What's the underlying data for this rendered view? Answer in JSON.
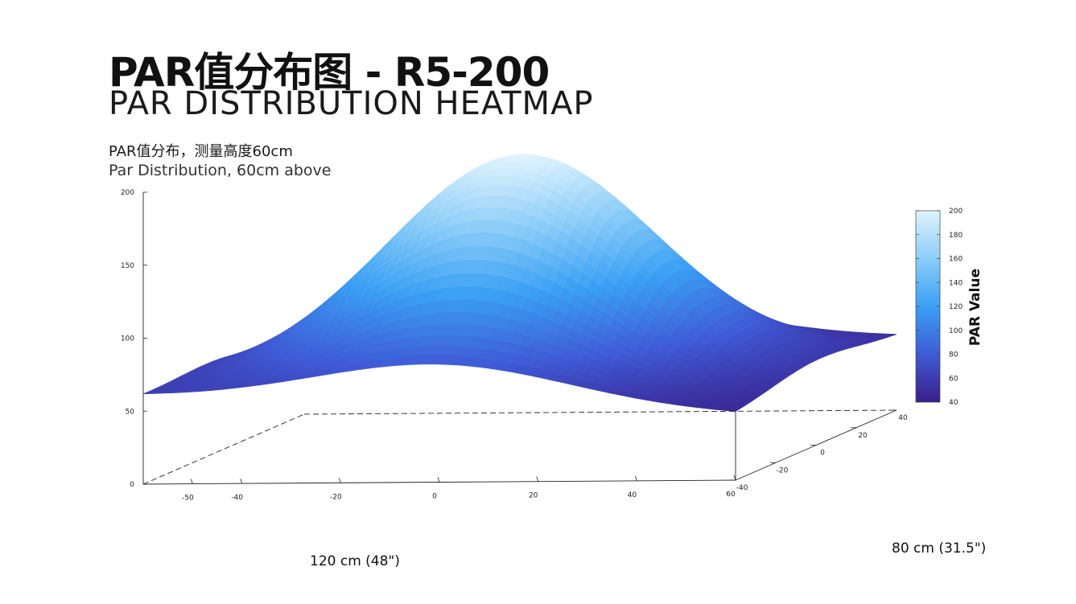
{
  "header": {
    "title_cn": "PAR值分布图 - R5-200",
    "title_en": "PAR DISTRIBUTION HEATMAP",
    "subtitle_cn": "PAR值分布，测量高度60cm",
    "subtitle_en": "Par Distribution, 60cm above"
  },
  "chart_data": {
    "type": "surface",
    "xlabel": "120 cm (48\")",
    "ylabel": "80 cm (31.5\")",
    "colorbar_label": "PAR Value",
    "x_range": [
      -60,
      60
    ],
    "y_range": [
      -40,
      40
    ],
    "z_range": [
      0,
      200
    ],
    "x_ticks": [
      "-50",
      "-40",
      "-20",
      "0",
      "20",
      "40",
      "60"
    ],
    "y_ticks": [
      "-40",
      "-20",
      "0",
      "20",
      "40"
    ],
    "z_ticks": [
      "0",
      "50",
      "100",
      "150",
      "200"
    ],
    "colorbar_ticks": [
      "40",
      "60",
      "80",
      "100",
      "120",
      "140",
      "160",
      "180",
      "200"
    ],
    "colorbar_range": [
      40,
      200
    ],
    "corner_values": {
      "x_min_y_min": 60,
      "x_max_y_min": 45,
      "x_min_y_max": 45,
      "x_max_y_max": 50
    },
    "center_peak": 200,
    "colormap": [
      "#3a1e8a",
      "#3f5bd6",
      "#3aa0f4",
      "#8ccdf8",
      "#dff3fd"
    ]
  }
}
